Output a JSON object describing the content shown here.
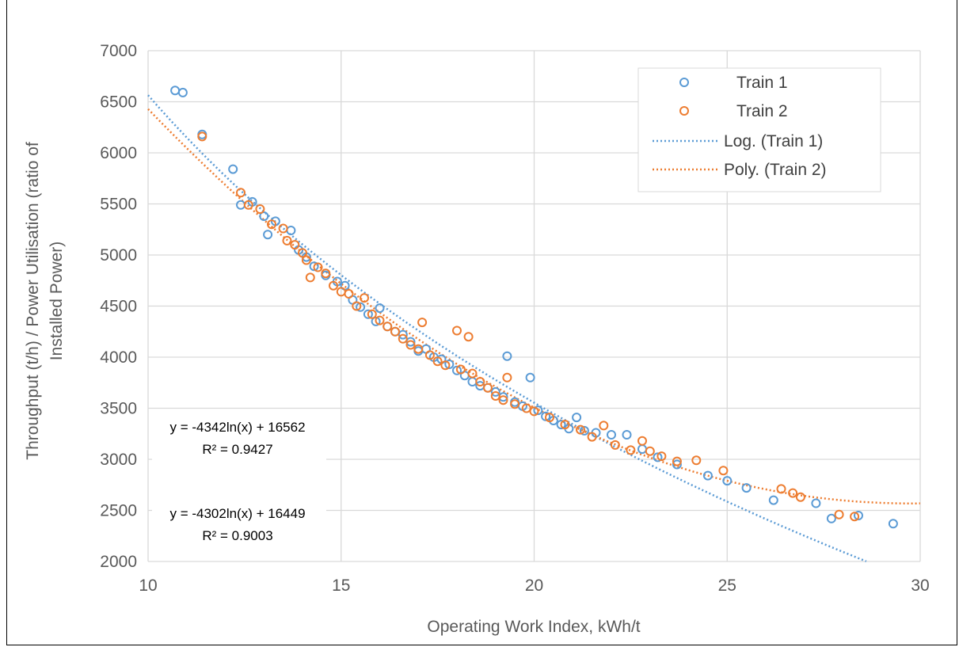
{
  "chart_data": {
    "type": "scatter",
    "xlabel": "Operating Work Index, kWh/t",
    "ylabel": "Throughput (t/h) / Power Utilisation (ratio of Installed Power)",
    "ylabel_lines": [
      "Throughput (t/h) / Power Utilisation (ratio of",
      "Installed Power)"
    ],
    "xlim": [
      10,
      30
    ],
    "ylim": [
      2000,
      7000
    ],
    "x_ticks": [
      "10",
      "15",
      "20",
      "25",
      "30"
    ],
    "y_ticks": [
      "2000",
      "2500",
      "3000",
      "3500",
      "4000",
      "4500",
      "5000",
      "5500",
      "6000",
      "6500",
      "7000"
    ],
    "grid": true,
    "legend_position": "top-right",
    "legend": [
      "Train 1",
      "Train 2",
      "Log. (Train 1)",
      "Poly. (Train 2)"
    ],
    "colors": {
      "train1": "#5B9BD5",
      "train2": "#ED7D31"
    },
    "series": [
      {
        "name": "Train 1",
        "points": [
          [
            10.7,
            6610
          ],
          [
            10.9,
            6590
          ],
          [
            11.4,
            6180
          ],
          [
            12.2,
            5840
          ],
          [
            12.4,
            5490
          ],
          [
            12.7,
            5520
          ],
          [
            13.0,
            5380
          ],
          [
            13.1,
            5200
          ],
          [
            13.3,
            5330
          ],
          [
            13.7,
            5240
          ],
          [
            13.9,
            5050
          ],
          [
            14.1,
            4980
          ],
          [
            14.3,
            4890
          ],
          [
            14.6,
            4800
          ],
          [
            14.9,
            4740
          ],
          [
            15.1,
            4700
          ],
          [
            15.3,
            4560
          ],
          [
            15.5,
            4490
          ],
          [
            15.7,
            4420
          ],
          [
            15.9,
            4350
          ],
          [
            16.0,
            4480
          ],
          [
            16.2,
            4300
          ],
          [
            16.4,
            4250
          ],
          [
            16.6,
            4220
          ],
          [
            16.8,
            4150
          ],
          [
            17.0,
            4060
          ],
          [
            17.2,
            4080
          ],
          [
            17.4,
            4000
          ],
          [
            17.6,
            3980
          ],
          [
            17.8,
            3930
          ],
          [
            18.0,
            3870
          ],
          [
            18.2,
            3820
          ],
          [
            18.4,
            3760
          ],
          [
            18.6,
            3720
          ],
          [
            18.8,
            3700
          ],
          [
            19.0,
            3660
          ],
          [
            19.2,
            3610
          ],
          [
            19.3,
            4010
          ],
          [
            19.5,
            3560
          ],
          [
            19.7,
            3520
          ],
          [
            19.9,
            3800
          ],
          [
            20.1,
            3480
          ],
          [
            20.3,
            3420
          ],
          [
            20.5,
            3380
          ],
          [
            20.7,
            3340
          ],
          [
            20.9,
            3300
          ],
          [
            21.1,
            3410
          ],
          [
            21.3,
            3280
          ],
          [
            21.6,
            3260
          ],
          [
            22.0,
            3240
          ],
          [
            22.4,
            3240
          ],
          [
            22.8,
            3100
          ],
          [
            23.2,
            3020
          ],
          [
            23.7,
            2950
          ],
          [
            24.5,
            2840
          ],
          [
            25.0,
            2790
          ],
          [
            25.5,
            2720
          ],
          [
            26.2,
            2600
          ],
          [
            27.3,
            2570
          ],
          [
            27.7,
            2420
          ],
          [
            28.4,
            2450
          ],
          [
            29.3,
            2370
          ]
        ]
      },
      {
        "name": "Train 2",
        "points": [
          [
            11.4,
            6160
          ],
          [
            12.4,
            5610
          ],
          [
            12.6,
            5490
          ],
          [
            12.9,
            5450
          ],
          [
            13.2,
            5300
          ],
          [
            13.5,
            5260
          ],
          [
            13.6,
            5140
          ],
          [
            13.8,
            5100
          ],
          [
            14.0,
            5020
          ],
          [
            14.1,
            4950
          ],
          [
            14.2,
            4780
          ],
          [
            14.4,
            4880
          ],
          [
            14.6,
            4820
          ],
          [
            14.8,
            4700
          ],
          [
            15.0,
            4640
          ],
          [
            15.2,
            4620
          ],
          [
            15.4,
            4500
          ],
          [
            15.6,
            4580
          ],
          [
            15.8,
            4420
          ],
          [
            16.0,
            4360
          ],
          [
            16.2,
            4300
          ],
          [
            16.4,
            4250
          ],
          [
            16.6,
            4180
          ],
          [
            16.8,
            4120
          ],
          [
            17.0,
            4080
          ],
          [
            17.1,
            4340
          ],
          [
            17.3,
            4020
          ],
          [
            17.5,
            3960
          ],
          [
            17.7,
            3920
          ],
          [
            18.0,
            4260
          ],
          [
            18.1,
            3880
          ],
          [
            18.3,
            4200
          ],
          [
            18.4,
            3840
          ],
          [
            18.6,
            3760
          ],
          [
            18.8,
            3700
          ],
          [
            19.0,
            3620
          ],
          [
            19.2,
            3580
          ],
          [
            19.3,
            3800
          ],
          [
            19.5,
            3540
          ],
          [
            19.8,
            3500
          ],
          [
            20.0,
            3470
          ],
          [
            20.4,
            3410
          ],
          [
            20.8,
            3340
          ],
          [
            21.2,
            3290
          ],
          [
            21.5,
            3220
          ],
          [
            21.8,
            3330
          ],
          [
            22.1,
            3140
          ],
          [
            22.5,
            3090
          ],
          [
            22.8,
            3180
          ],
          [
            23.0,
            3080
          ],
          [
            23.3,
            3030
          ],
          [
            23.7,
            2980
          ],
          [
            24.2,
            2990
          ],
          [
            24.9,
            2890
          ],
          [
            26.4,
            2710
          ],
          [
            26.7,
            2670
          ],
          [
            26.9,
            2630
          ],
          [
            28.3,
            2440
          ],
          [
            27.9,
            2460
          ]
        ]
      }
    ],
    "trendlines": [
      {
        "name": "Log. (Train 1)",
        "kind": "logarithmic",
        "a": -4342,
        "b": 16562
      },
      {
        "name": "Poly. (Train 2)",
        "kind": "polynomial"
      }
    ],
    "annotations": [
      {
        "line1": "y = -4342ln(x) + 16562",
        "line2": "R² = 0.9427"
      },
      {
        "line1": "y = -4302ln(x) + 16449",
        "line2": "R² = 0.9003"
      }
    ]
  }
}
